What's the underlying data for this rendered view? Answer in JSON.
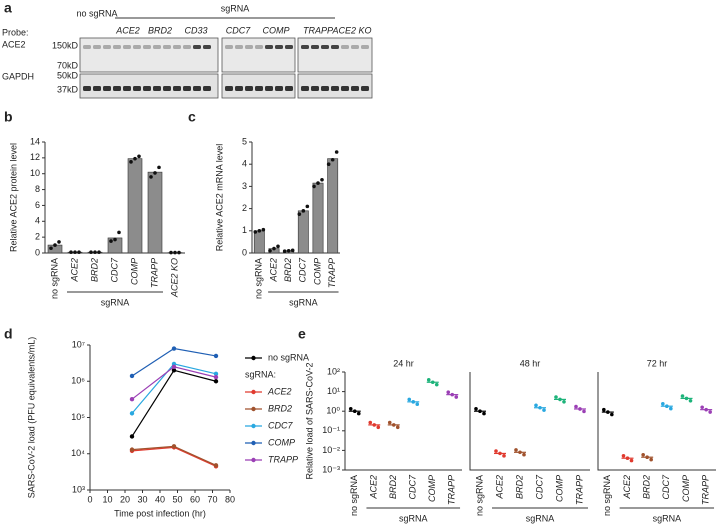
{
  "panel_labels": [
    "a",
    "b",
    "c",
    "d",
    "e"
  ],
  "blot": {
    "probe_label": "Probe:",
    "probes": [
      "ACE2",
      "GAPDH"
    ],
    "control_label": "no sgRNA",
    "group_label": "sgRNA",
    "lanes": [
      "ACE2",
      "BRD2",
      "CD33",
      "CDC7",
      "COMP",
      "TRAPP",
      "ACE2 KO"
    ],
    "markers": [
      "150kD",
      "70kD",
      "50kD",
      "37kD"
    ]
  },
  "chart_data": [
    {
      "type": "bar",
      "ylabel": "Relative ACE2 protein level",
      "group_label": "sgRNA",
      "categories": [
        "no sgRNA",
        "ACE2",
        "BRD2",
        "CDC7",
        "COMP",
        "TRAPP",
        "ACE2 KO"
      ],
      "values": [
        1,
        0.1,
        0.1,
        1.9,
        11.9,
        10.2,
        0.05
      ],
      "points": [
        [
          0.6,
          1.0,
          1.4
        ],
        [
          0.1,
          0.1,
          0.1
        ],
        [
          0.1,
          0.1,
          0.1
        ],
        [
          1.5,
          1.7,
          2.6
        ],
        [
          11.5,
          11.9,
          12.2
        ],
        [
          9.6,
          10.1,
          10.8
        ],
        [
          0.05,
          0.05,
          0.05
        ]
      ],
      "color": "#8c8c8c",
      "ylim": [
        0,
        14
      ],
      "yticks": [
        0,
        2,
        4,
        6,
        8,
        10,
        12,
        14
      ]
    },
    {
      "type": "bar",
      "ylabel": "Relative ACE2 mRNA level",
      "group_label": "sgRNA",
      "categories": [
        "no sgRNA",
        "ACE2",
        "BRD2",
        "CDC7",
        "COMP",
        "TRAPP"
      ],
      "values": [
        1.0,
        0.2,
        0.1,
        1.9,
        3.15,
        4.25
      ],
      "points": [
        [
          0.95,
          1.0,
          1.05
        ],
        [
          0.1,
          0.2,
          0.3
        ],
        [
          0.08,
          0.1,
          0.12
        ],
        [
          1.75,
          1.9,
          2.1
        ],
        [
          3.0,
          3.15,
          3.3
        ],
        [
          4.0,
          4.2,
          4.55
        ]
      ],
      "color": "#8c8c8c",
      "ylim": [
        0,
        5
      ],
      "yticks": [
        0,
        1,
        2,
        3,
        4,
        5
      ]
    },
    {
      "type": "line",
      "ylabel": "SARS-CoV-2 load (PFU equivalents/mL)",
      "xlabel": "Time post infection (hr)",
      "legend_group_label": "sgRNA:",
      "log_y": true,
      "x": [
        24,
        48,
        72
      ],
      "xlim": [
        0,
        80
      ],
      "xticks": [
        0,
        10,
        20,
        30,
        40,
        50,
        60,
        70,
        80
      ],
      "ylim": [
        1000,
        10000000
      ],
      "yticks": [
        {
          "value": 1000,
          "label": "10³"
        },
        {
          "value": 10000,
          "label": "10⁴"
        },
        {
          "value": 100000,
          "label": "10⁵"
        },
        {
          "value": 1000000,
          "label": "10⁶"
        },
        {
          "value": 10000000,
          "label": "10⁷"
        }
      ],
      "series": [
        {
          "name": "no sgRNA",
          "color": "#000000",
          "values": [
            30000,
            2000000,
            1000000
          ]
        },
        {
          "name": "ACE2",
          "color": "#e03a2f",
          "values": [
            12000,
            15000,
            4500
          ]
        },
        {
          "name": "BRD2",
          "color": "#a0522d",
          "values": [
            13000,
            16000,
            4800
          ]
        },
        {
          "name": "CDC7",
          "color": "#29a8e0",
          "values": [
            130000,
            3000000,
            1600000
          ]
        },
        {
          "name": "COMP",
          "color": "#1f5fb4",
          "values": [
            1400000,
            8000000,
            5000000
          ]
        },
        {
          "name": "TRAPP",
          "color": "#9b3fb5",
          "values": [
            320000,
            2500000,
            1300000
          ]
        }
      ]
    },
    {
      "type": "dot",
      "title": "24 hr",
      "ylabel": "Relative load of SARS-CoV-2",
      "group_label": "sgRNA",
      "log_y": true,
      "categories": [
        "no sgRNA",
        "ACE2",
        "BRD2",
        "CDC7",
        "COMP",
        "TRAPP"
      ],
      "colors": [
        "#000000",
        "#e03a2f",
        "#a0522d",
        "#29a8e0",
        "#1db37a",
        "#9b3fb5"
      ],
      "values": [
        1,
        0.2,
        0.2,
        3,
        30,
        7
      ],
      "ylim": [
        0.001,
        100
      ],
      "yticks": [
        {
          "value": 0.001,
          "label": "10⁻³"
        },
        {
          "value": 0.01,
          "label": "10⁻²"
        },
        {
          "value": 0.1,
          "label": "10⁻¹"
        },
        {
          "value": 1,
          "label": "10⁰"
        },
        {
          "value": 10,
          "label": "10¹"
        },
        {
          "value": 100,
          "label": "10²"
        }
      ]
    },
    {
      "type": "dot",
      "title": "48 hr",
      "group_label": "sgRNA",
      "log_y": true,
      "categories": [
        "no sgRNA",
        "ACE2",
        "BRD2",
        "CDC7",
        "COMP",
        "TRAPP"
      ],
      "colors": [
        "#000000",
        "#e03a2f",
        "#a0522d",
        "#29a8e0",
        "#1db37a",
        "#9b3fb5"
      ],
      "values": [
        1,
        0.007,
        0.008,
        1.5,
        4,
        1.3
      ],
      "ylim": [
        0.001,
        100
      ]
    },
    {
      "type": "dot",
      "title": "72 hr",
      "group_label": "sgRNA",
      "log_y": true,
      "categories": [
        "no sgRNA",
        "ACE2",
        "BRD2",
        "CDC7",
        "COMP",
        "TRAPP"
      ],
      "colors": [
        "#000000",
        "#e03a2f",
        "#a0522d",
        "#29a8e0",
        "#1db37a",
        "#9b3fb5"
      ],
      "values": [
        0.9,
        0.004,
        0.0045,
        1.8,
        4.5,
        1.2
      ],
      "ylim": [
        0.001,
        100
      ]
    }
  ]
}
